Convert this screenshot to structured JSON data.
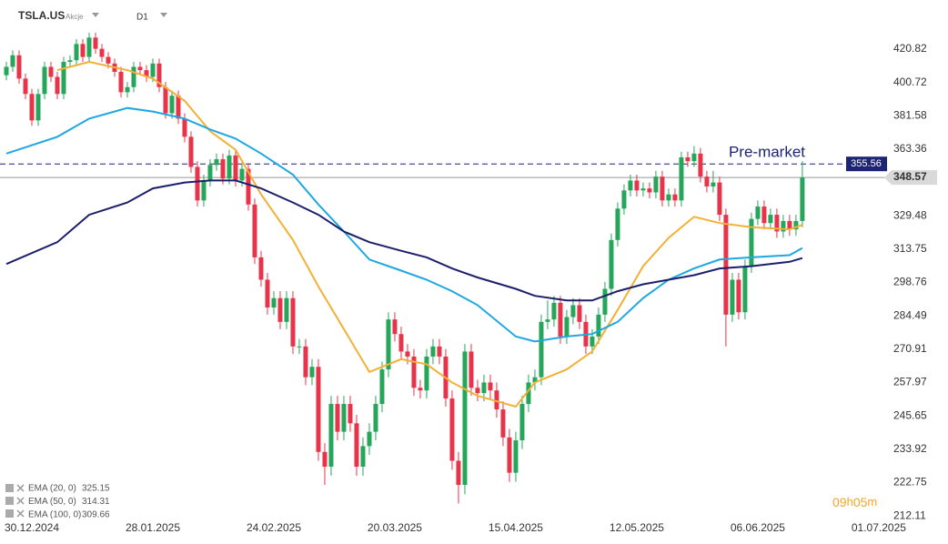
{
  "header": {
    "symbol": "TSLA.US",
    "asset_class": "Akcje",
    "timeframe": "D1"
  },
  "chart_data": {
    "type": "candlestick",
    "log_scale": true,
    "grid": false,
    "ylim": [
      209.9,
      434.5
    ],
    "yticks": [
      420.82,
      400.72,
      381.58,
      363.36,
      329.48,
      313.75,
      298.76,
      284.49,
      270.91,
      257.97,
      245.65,
      233.92,
      222.75,
      212.11
    ],
    "xlim": [
      -1,
      138.3
    ],
    "xticks": [
      {
        "value": 4,
        "label": "30.12.2024"
      },
      {
        "value": 23,
        "label": "28.01.2025"
      },
      {
        "value": 42,
        "label": "24.02.2025"
      },
      {
        "value": 61,
        "label": "20.03.2025"
      },
      {
        "value": 80,
        "label": "15.04.2025"
      },
      {
        "value": 99,
        "label": "12.05.2025"
      },
      {
        "value": 118,
        "label": "06.06.2025"
      },
      {
        "value": 137,
        "label": "01.07.2025"
      }
    ],
    "candles": {
      "up_color": "#26a65b",
      "down_color": "#e8344a",
      "open": [
        405,
        410,
        417,
        403,
        394,
        379,
        394,
        410,
        404,
        394,
        413,
        414,
        424,
        416,
        428,
        421,
        416,
        412,
        407,
        395,
        398,
        410,
        408,
        404,
        412,
        398,
        383,
        393,
        380,
        370,
        354,
        337,
        347,
        355,
        358,
        348,
        360,
        347,
        353,
        335,
        310,
        300,
        288,
        292,
        282,
        292,
        272,
        272,
        260,
        264,
        233,
        228,
        250,
        240,
        250,
        243,
        228,
        235,
        240,
        250,
        263,
        283,
        277,
        270,
        268,
        256,
        255,
        268,
        272,
        268,
        252,
        230,
        222,
        270,
        256,
        254,
        258,
        255,
        248,
        238,
        226,
        237,
        250,
        258,
        260,
        282,
        283,
        290,
        276,
        284,
        289,
        282,
        272,
        276,
        285,
        296,
        318,
        333,
        342,
        347,
        342,
        343,
        341,
        349,
        337,
        340,
        337,
        359,
        357,
        361,
        349,
        344,
        346,
        330,
        285,
        300,
        286,
        306,
        328,
        334,
        326,
        330,
        322,
        327,
        323,
        327
      ],
      "high": [
        413,
        420,
        420,
        406,
        397,
        397,
        413,
        413,
        407,
        416,
        417,
        427,
        427,
        431,
        431,
        424,
        419,
        415,
        410,
        401,
        413,
        413,
        411,
        415,
        415,
        401,
        396,
        396,
        383,
        373,
        357,
        350,
        358,
        361,
        361,
        363,
        363,
        356,
        356,
        338,
        313,
        303,
        295,
        295,
        295,
        295,
        275,
        275,
        267,
        267,
        236,
        253,
        253,
        253,
        253,
        246,
        238,
        243,
        253,
        266,
        286,
        286,
        280,
        273,
        271,
        259,
        271,
        275,
        275,
        271,
        255,
        233,
        273,
        273,
        259,
        261,
        261,
        258,
        251,
        241,
        240,
        253,
        261,
        263,
        285,
        291,
        293,
        293,
        287,
        292,
        292,
        285,
        279,
        288,
        299,
        321,
        336,
        345,
        350,
        350,
        346,
        346,
        352,
        352,
        343,
        343,
        362,
        362,
        365,
        364,
        352,
        352,
        349,
        333,
        303,
        303,
        309,
        331,
        337,
        337,
        333,
        333,
        330,
        330,
        330,
        357
      ],
      "low": [
        402,
        407,
        400,
        391,
        376,
        376,
        391,
        401,
        391,
        391,
        410,
        411,
        413,
        413,
        418,
        413,
        409,
        404,
        392,
        392,
        395,
        405,
        401,
        401,
        395,
        380,
        380,
        377,
        367,
        351,
        334,
        334,
        344,
        352,
        345,
        345,
        344,
        344,
        332,
        307,
        297,
        285,
        285,
        279,
        279,
        269,
        269,
        257,
        257,
        230,
        222,
        225,
        237,
        237,
        240,
        225,
        225,
        232,
        237,
        247,
        260,
        274,
        267,
        265,
        253,
        252,
        252,
        265,
        265,
        249,
        227,
        216,
        219,
        253,
        251,
        251,
        252,
        245,
        235,
        223,
        223,
        234,
        247,
        255,
        257,
        279,
        280,
        273,
        273,
        281,
        279,
        269,
        269,
        273,
        282,
        293,
        315,
        330,
        339,
        339,
        339,
        338,
        338,
        334,
        334,
        334,
        334,
        354,
        354,
        346,
        341,
        341,
        327,
        272,
        282,
        283,
        283,
        303,
        325,
        323,
        323,
        319,
        319,
        320,
        320,
        324
      ],
      "close": [
        410,
        417,
        403,
        394,
        379,
        394,
        410,
        404,
        394,
        413,
        414,
        424,
        416,
        428,
        421,
        416,
        412,
        407,
        395,
        398,
        410,
        408,
        404,
        412,
        398,
        383,
        393,
        380,
        370,
        354,
        337,
        347,
        355,
        358,
        348,
        360,
        347,
        353,
        335,
        310,
        300,
        288,
        292,
        282,
        292,
        272,
        272,
        260,
        264,
        233,
        228,
        250,
        240,
        250,
        243,
        228,
        235,
        240,
        250,
        263,
        283,
        277,
        270,
        268,
        256,
        255,
        268,
        272,
        268,
        252,
        230,
        222,
        270,
        256,
        254,
        258,
        255,
        248,
        238,
        226,
        237,
        250,
        258,
        260,
        282,
        283,
        290,
        276,
        284,
        289,
        282,
        272,
        276,
        285,
        296,
        318,
        333,
        342,
        347,
        342,
        343,
        341,
        349,
        337,
        340,
        337,
        359,
        357,
        361,
        349,
        344,
        346,
        330,
        285,
        300,
        286,
        306,
        328,
        334,
        326,
        330,
        322,
        327,
        323,
        327,
        348.57
      ]
    },
    "series": [
      {
        "name": "EMA (20, 0)",
        "color": "#f2b134",
        "last_value": 325.15,
        "x": [
          8,
          13,
          19,
          23,
          28,
          32,
          36,
          40,
          45,
          49,
          53,
          57,
          62,
          66,
          70,
          74,
          80,
          83,
          88,
          92,
          96,
          100,
          104,
          108,
          112,
          117,
          123,
          125
        ],
        "values": [
          408,
          413,
          408,
          403,
          390,
          373,
          363,
          340,
          318,
          297,
          279,
          262,
          267,
          265,
          258,
          253,
          249,
          258,
          263,
          270,
          287,
          306,
          319,
          329,
          326,
          324,
          323,
          325.15
        ]
      },
      {
        "name": "EMA (50, 0)",
        "color": "#1ea7e1",
        "last_value": 314.31,
        "x": [
          0,
          8,
          13,
          19,
          23,
          28,
          32,
          36,
          40,
          45,
          49,
          53,
          57,
          62,
          66,
          70,
          74,
          80,
          83,
          88,
          92,
          96,
          100,
          104,
          108,
          112,
          117,
          123,
          125
        ],
        "values": [
          361,
          370,
          380,
          386,
          384,
          380,
          374,
          369,
          361,
          350,
          335,
          322,
          309,
          304,
          300,
          295,
          289,
          276,
          274,
          276,
          277,
          282,
          292,
          300,
          305,
          309,
          310,
          311,
          314.31
        ]
      },
      {
        "name": "EMA (100, 0)",
        "color": "#1c1f6b",
        "last_value": 309.66,
        "x": [
          0,
          8,
          13,
          19,
          23,
          28,
          32,
          36,
          40,
          45,
          49,
          53,
          57,
          62,
          66,
          70,
          74,
          80,
          83,
          88,
          92,
          96,
          100,
          104,
          108,
          112,
          117,
          123,
          125
        ],
        "values": [
          307,
          317,
          330,
          336,
          343,
          346,
          347,
          347,
          343,
          336,
          330,
          322,
          317,
          313,
          310,
          305,
          301,
          296,
          293,
          291,
          291,
          295,
          298,
          300,
          302,
          305,
          306,
          308,
          309.66
        ]
      }
    ],
    "premarket": {
      "label": "Pre-market",
      "value": 355.56,
      "color": "#1c2473"
    },
    "last_price": 348.57,
    "countdown": [
      "09",
      "h",
      "05",
      "m"
    ]
  }
}
